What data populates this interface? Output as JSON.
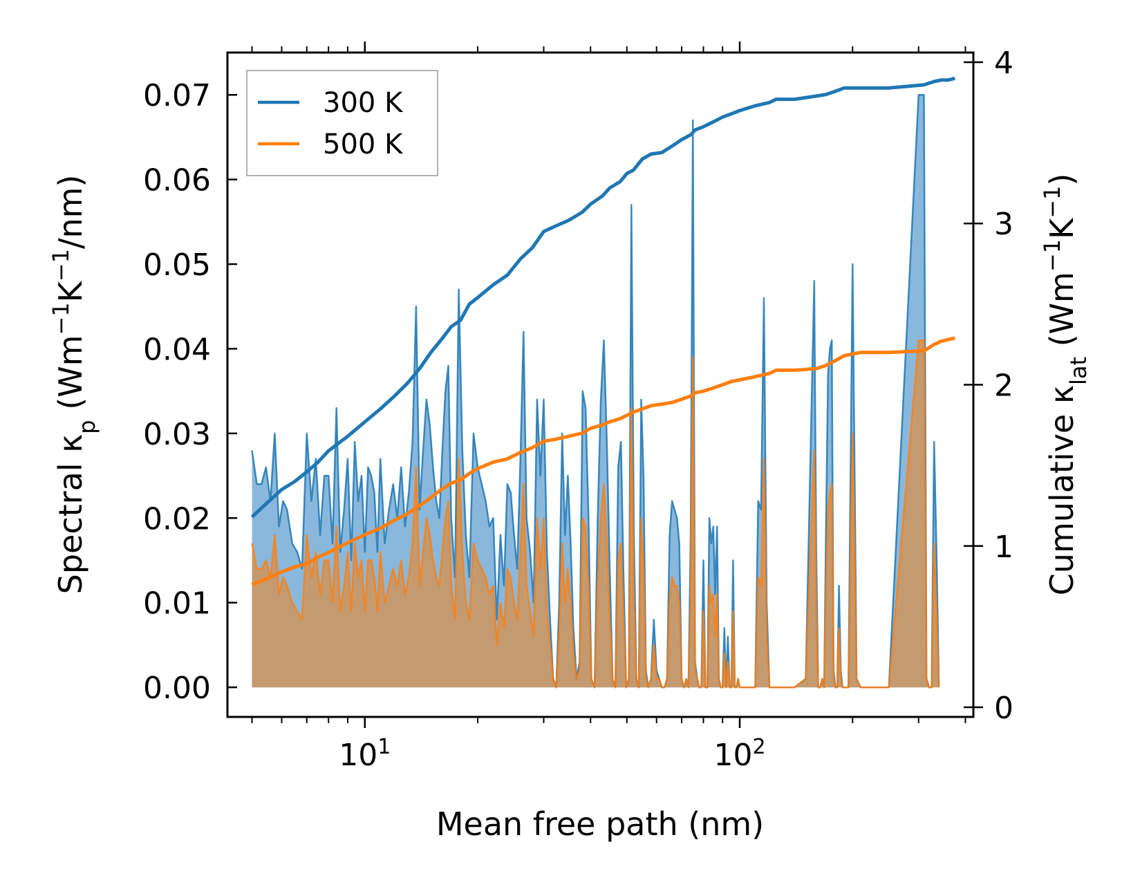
{
  "chart_data": {
    "type": "line",
    "title": "",
    "xlabel": "Mean free path (nm)",
    "ylabel": "Spectral κ",
    "ylabel_sub": "p",
    "ylabel_units": "(Wm",
    "ylabel_units_2": "K",
    "ylabel_units_3": "/nm)",
    "y2label": "Cumulative κ",
    "y2label_sub": "lat",
    "y2label_units": "(Wm",
    "y2label_units_2": "K",
    "y2label_units_3": ")",
    "superscript_minus1": "−1",
    "xscale": "log",
    "xlim": [
      4.3,
      420
    ],
    "ylim": [
      -0.0035,
      0.075
    ],
    "y2lim": [
      -0.06,
      4.06
    ],
    "x_ticks": [
      {
        "label_base": "10",
        "label_exp": "1"
      },
      {
        "label_base": "10",
        "label_exp": "2"
      }
    ],
    "y_ticks": [
      "0.00",
      "0.01",
      "0.02",
      "0.03",
      "0.04",
      "0.05",
      "0.06",
      "0.07"
    ],
    "y2_ticks": [
      "0",
      "1",
      "2",
      "3",
      "4"
    ],
    "legend": {
      "position": "upper-left",
      "entries": [
        "300 K",
        "500 K"
      ]
    },
    "colors": {
      "300K": "#1f77b4",
      "500K": "#ff7f0e",
      "fill300": "#8ab8dc",
      "fill500": "#c49a70"
    },
    "spectral_mfp": [
      5.0,
      5.15,
      5.3,
      5.45,
      5.6,
      5.75,
      5.9,
      6.05,
      6.2,
      6.4,
      6.6,
      6.8,
      7.0,
      7.2,
      7.4,
      7.6,
      7.8,
      8.0,
      8.2,
      8.4,
      8.6,
      8.8,
      9.0,
      9.2,
      9.4,
      9.6,
      9.8,
      10.0,
      10.2,
      10.4,
      10.6,
      10.8,
      11.0,
      11.3,
      11.6,
      11.9,
      12.2,
      12.5,
      12.8,
      13.1,
      13.4,
      13.7,
      14.0,
      14.3,
      14.6,
      14.9,
      15.2,
      15.5,
      15.8,
      16.1,
      16.4,
      16.7,
      17.0,
      17.4,
      17.8,
      18.2,
      18.6,
      19.0,
      19.5,
      20.0,
      20.5,
      21.0,
      21.5,
      22.0,
      22.5,
      23.0,
      23.5,
      24.0,
      24.5,
      25.0,
      25.5,
      26.0,
      26.5,
      27.0,
      27.6,
      28.2,
      28.8,
      29.4,
      30.0,
      30.6,
      31.2,
      31.8,
      32.4,
      33.0,
      33.6,
      34.2,
      34.8,
      35.4,
      36.0,
      36.7,
      37.4,
      38.1,
      38.8,
      39.5,
      40.2,
      41.0,
      41.8,
      42.6,
      43.4,
      44.2,
      45.0,
      45.8,
      46.6,
      47.4,
      48.2,
      49.0,
      49.8,
      50.6,
      51.4,
      52.2,
      53.0,
      53.8,
      54.6,
      55.4,
      56.2,
      57.0,
      58.0,
      59.0,
      60.0,
      61.0,
      62.0,
      63.0,
      64.0,
      65.0,
      66.0,
      67.0,
      68.0,
      69.0,
      70.0,
      71.0,
      72.0,
      73.0,
      74.0,
      75.0,
      76.0,
      77.0,
      78.0,
      79.0,
      80.0,
      81.0,
      82.0,
      83.0,
      84.0,
      85.0,
      86.0,
      87.0,
      88.0,
      89.0,
      90.0,
      91.0,
      92.0,
      93.0,
      94.0,
      95.0,
      96.0,
      97.0,
      98.0,
      99.0,
      100.0,
      102.0,
      104.0,
      106.0,
      108.0,
      110.0,
      112.0,
      114.0,
      116.0,
      118.0,
      120.0,
      122.0,
      124.0,
      126.0,
      128.0,
      130.0,
      140.0,
      150.0,
      158.0,
      160.0,
      162.0,
      164.0,
      166.0,
      168.0,
      170.0,
      172.0,
      174.0,
      176.0,
      178.0,
      180.0,
      182.0,
      184.0,
      186.0,
      188.0,
      190.0,
      195.0,
      200.0,
      205.0,
      210.0,
      250.0,
      300.0,
      310.0,
      315.0,
      320.0,
      325.0,
      330.0,
      335.0,
      340.0,
      345.0,
      350.0,
      360.0,
      370.0,
      375.0,
      380.0
    ],
    "series": [
      {
        "name": "300 K",
        "spectral": [
          0.028,
          0.024,
          0.024,
          0.026,
          0.022,
          0.03,
          0.019,
          0.022,
          0.021,
          0.017,
          0.016,
          0.014,
          0.03,
          0.022,
          0.027,
          0.018,
          0.025,
          0.025,
          0.017,
          0.033,
          0.016,
          0.021,
          0.027,
          0.015,
          0.029,
          0.022,
          0.025,
          0.016,
          0.026,
          0.025,
          0.023,
          0.016,
          0.027,
          0.017,
          0.021,
          0.024,
          0.02,
          0.026,
          0.019,
          0.023,
          0.029,
          0.045,
          0.021,
          0.028,
          0.034,
          0.031,
          0.026,
          0.022,
          0.02,
          0.028,
          0.035,
          0.038,
          0.02,
          0.013,
          0.047,
          0.028,
          0.018,
          0.013,
          0.03,
          0.026,
          0.024,
          0.022,
          0.019,
          0.02,
          0.008,
          0.018,
          0.012,
          0.024,
          0.023,
          0.018,
          0.014,
          0.027,
          0.042,
          0.02,
          0.016,
          0.01,
          0.034,
          0.025,
          0.034,
          0.016,
          0.008,
          0.001,
          0.0,
          0.01,
          0.03,
          0.018,
          0.025,
          0.017,
          0.007,
          0.001,
          0.003,
          0.035,
          0.033,
          0.02,
          0.001,
          0.0,
          0.02,
          0.034,
          0.041,
          0.029,
          0.014,
          0.001,
          0.0,
          0.026,
          0.029,
          0.013,
          0.0,
          0.001,
          0.057,
          0.018,
          0.001,
          0.0,
          0.034,
          0.025,
          0.002,
          0.0,
          0.001,
          0.008,
          0.002,
          0.001,
          0.0,
          0.0,
          0.001,
          0.018,
          0.022,
          0.021,
          0.02,
          0.017,
          0.001,
          0.0,
          0.001,
          0.0,
          0.018,
          0.067,
          0.003,
          0.001,
          0.0,
          0.0,
          0.015,
          0.0,
          0.0,
          0.02,
          0.017,
          0.019,
          0.011,
          0.019,
          0.001,
          0.0,
          0.0,
          0.007,
          0.0,
          0.006,
          0.0,
          0.0,
          0.015,
          0.0,
          0.0,
          0.001,
          0.0,
          0.0,
          0.0,
          0.0,
          0.0,
          0.0,
          0.022,
          0.021,
          0.046,
          0.01,
          0.0,
          0.0,
          0.0,
          0.0,
          0.0,
          0.0,
          0.0,
          0.001,
          0.048,
          0.016,
          0.0,
          0.0,
          0.001,
          0.0,
          0.02,
          0.037,
          0.04,
          0.041,
          0.002,
          0.0,
          0.0,
          0.012,
          0.002,
          0.0,
          0.0,
          0.0,
          0.05,
          0.001,
          0.0,
          0.0,
          0.07,
          0.07,
          0.001,
          0.0,
          0.0,
          0.029,
          0.016,
          0.0
        ],
        "cum_mfp": [
          5.0,
          5.5,
          6.0,
          6.5,
          7.0,
          7.5,
          8.0,
          9.0,
          10.0,
          11.0,
          12.0,
          13.0,
          14.0,
          15.0,
          16.0,
          17.0,
          18.0,
          19.0,
          20.0,
          22.0,
          24.0,
          26.0,
          28.0,
          30.0,
          32.0,
          35.0,
          38.0,
          40.0,
          43.0,
          45.0,
          48.0,
          50.0,
          52.0,
          55.0,
          58.0,
          62.0,
          66.0,
          70.0,
          74.0,
          76.0,
          80.0,
          85.0,
          90.0,
          95.0,
          100.0,
          110.0,
          120.0,
          125.0,
          140.0,
          160.0,
          170.0,
          180.0,
          190.0,
          210.0,
          250.0,
          310.0,
          320.0,
          330.0,
          345.0,
          360.0,
          375.0
        ],
        "cumulative": [
          1.18,
          1.27,
          1.35,
          1.4,
          1.46,
          1.52,
          1.59,
          1.68,
          1.77,
          1.85,
          1.93,
          2.01,
          2.1,
          2.2,
          2.28,
          2.36,
          2.4,
          2.5,
          2.54,
          2.62,
          2.68,
          2.78,
          2.85,
          2.95,
          2.98,
          3.02,
          3.07,
          3.12,
          3.17,
          3.22,
          3.26,
          3.31,
          3.33,
          3.4,
          3.43,
          3.44,
          3.48,
          3.52,
          3.55,
          3.58,
          3.6,
          3.63,
          3.66,
          3.68,
          3.7,
          3.73,
          3.75,
          3.77,
          3.77,
          3.79,
          3.8,
          3.82,
          3.84,
          3.84,
          3.84,
          3.86,
          3.87,
          3.88,
          3.89,
          3.89,
          3.9
        ]
      },
      {
        "name": "500 K",
        "spectral": [
          0.017,
          0.014,
          0.014,
          0.015,
          0.013,
          0.018,
          0.011,
          0.013,
          0.012,
          0.01,
          0.009,
          0.008,
          0.018,
          0.013,
          0.016,
          0.011,
          0.015,
          0.015,
          0.01,
          0.019,
          0.009,
          0.012,
          0.016,
          0.009,
          0.017,
          0.013,
          0.015,
          0.009,
          0.015,
          0.015,
          0.013,
          0.009,
          0.016,
          0.01,
          0.012,
          0.014,
          0.012,
          0.015,
          0.011,
          0.013,
          0.017,
          0.026,
          0.012,
          0.016,
          0.02,
          0.018,
          0.015,
          0.013,
          0.012,
          0.016,
          0.02,
          0.022,
          0.012,
          0.008,
          0.027,
          0.016,
          0.01,
          0.008,
          0.017,
          0.015,
          0.014,
          0.013,
          0.011,
          0.012,
          0.005,
          0.01,
          0.007,
          0.014,
          0.013,
          0.01,
          0.008,
          0.016,
          0.024,
          0.012,
          0.009,
          0.006,
          0.02,
          0.014,
          0.02,
          0.009,
          0.005,
          0.001,
          0.0,
          0.006,
          0.017,
          0.01,
          0.014,
          0.01,
          0.004,
          0.001,
          0.002,
          0.02,
          0.019,
          0.012,
          0.001,
          0.0,
          0.012,
          0.02,
          0.024,
          0.017,
          0.008,
          0.001,
          0.0,
          0.015,
          0.017,
          0.008,
          0.0,
          0.001,
          0.033,
          0.01,
          0.001,
          0.0,
          0.02,
          0.014,
          0.001,
          0.0,
          0.001,
          0.005,
          0.001,
          0.001,
          0.0,
          0.0,
          0.001,
          0.01,
          0.013,
          0.012,
          0.012,
          0.01,
          0.001,
          0.0,
          0.001,
          0.0,
          0.01,
          0.039,
          0.002,
          0.001,
          0.0,
          0.0,
          0.009,
          0.0,
          0.0,
          0.012,
          0.01,
          0.011,
          0.006,
          0.011,
          0.001,
          0.0,
          0.0,
          0.004,
          0.0,
          0.003,
          0.0,
          0.0,
          0.009,
          0.0,
          0.0,
          0.001,
          0.0,
          0.0,
          0.0,
          0.0,
          0.0,
          0.0,
          0.013,
          0.012,
          0.027,
          0.006,
          0.0,
          0.0,
          0.0,
          0.0,
          0.0,
          0.0,
          0.0,
          0.001,
          0.028,
          0.009,
          0.0,
          0.0,
          0.001,
          0.0,
          0.012,
          0.021,
          0.023,
          0.024,
          0.001,
          0.0,
          0.0,
          0.007,
          0.001,
          0.0,
          0.0,
          0.0,
          0.03,
          0.001,
          0.0,
          0.0,
          0.041,
          0.041,
          0.001,
          0.0,
          0.0,
          0.017,
          0.009,
          0.0
        ],
        "cum_mfp": [
          5.0,
          5.5,
          6.0,
          6.5,
          7.0,
          7.5,
          8.0,
          9.0,
          10.0,
          11.0,
          12.0,
          13.0,
          14.0,
          15.0,
          16.0,
          17.0,
          18.0,
          19.0,
          20.0,
          22.0,
          24.0,
          26.0,
          28.0,
          30.0,
          32.0,
          35.0,
          38.0,
          40.0,
          43.0,
          45.0,
          48.0,
          50.0,
          52.0,
          55.0,
          58.0,
          62.0,
          66.0,
          70.0,
          74.0,
          76.0,
          80.0,
          85.0,
          90.0,
          95.0,
          100.0,
          110.0,
          120.0,
          125.0,
          140.0,
          160.0,
          170.0,
          180.0,
          190.0,
          210.0,
          250.0,
          310.0,
          320.0,
          330.0,
          345.0,
          360.0,
          375.0
        ],
        "cumulative": [
          0.76,
          0.8,
          0.84,
          0.87,
          0.89,
          0.93,
          0.96,
          1.02,
          1.07,
          1.11,
          1.16,
          1.2,
          1.25,
          1.3,
          1.35,
          1.39,
          1.41,
          1.45,
          1.48,
          1.52,
          1.54,
          1.58,
          1.61,
          1.65,
          1.66,
          1.68,
          1.7,
          1.73,
          1.75,
          1.77,
          1.79,
          1.81,
          1.83,
          1.85,
          1.87,
          1.88,
          1.89,
          1.91,
          1.93,
          1.95,
          1.96,
          1.98,
          2.0,
          2.02,
          2.03,
          2.05,
          2.07,
          2.09,
          2.09,
          2.1,
          2.12,
          2.15,
          2.18,
          2.2,
          2.2,
          2.21,
          2.23,
          2.25,
          2.27,
          2.28,
          2.29
        ]
      }
    ]
  }
}
